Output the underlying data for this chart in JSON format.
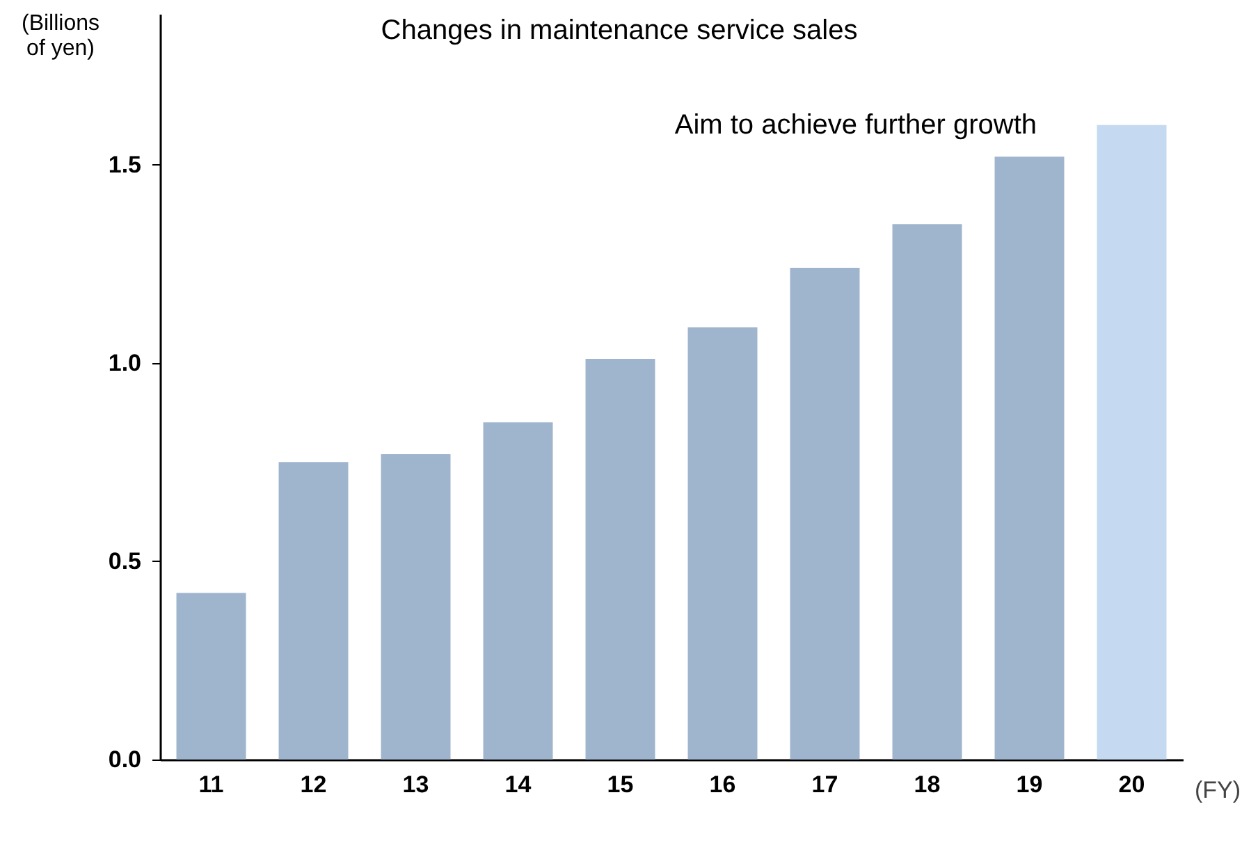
{
  "chart_data": {
    "type": "bar",
    "title": "Changes in maintenance service sales",
    "ylabel": "(Billions of yen)",
    "xlabel": "(FY)",
    "categories": [
      "11",
      "12",
      "13",
      "14",
      "15",
      "16",
      "17",
      "18",
      "19",
      "20"
    ],
    "values": [
      0.42,
      0.75,
      0.77,
      0.85,
      1.01,
      1.09,
      1.24,
      1.35,
      1.52,
      1.6
    ],
    "colors": [
      "#9fb4cd",
      "#9fb4cd",
      "#9fb4cd",
      "#9fb4cd",
      "#9fb4cd",
      "#9fb4cd",
      "#9fb4cd",
      "#9fb4cd",
      "#9fb4cd",
      "#c5d9f1"
    ],
    "ylim": [
      0,
      1.88
    ],
    "yticks": [
      {
        "value": 0,
        "label": "0.0"
      },
      0.5,
      {
        "value": 1,
        "label": "1.0"
      },
      1.5
    ],
    "annotations": [
      "Aim to achieve further growth"
    ],
    "grid": false
  }
}
